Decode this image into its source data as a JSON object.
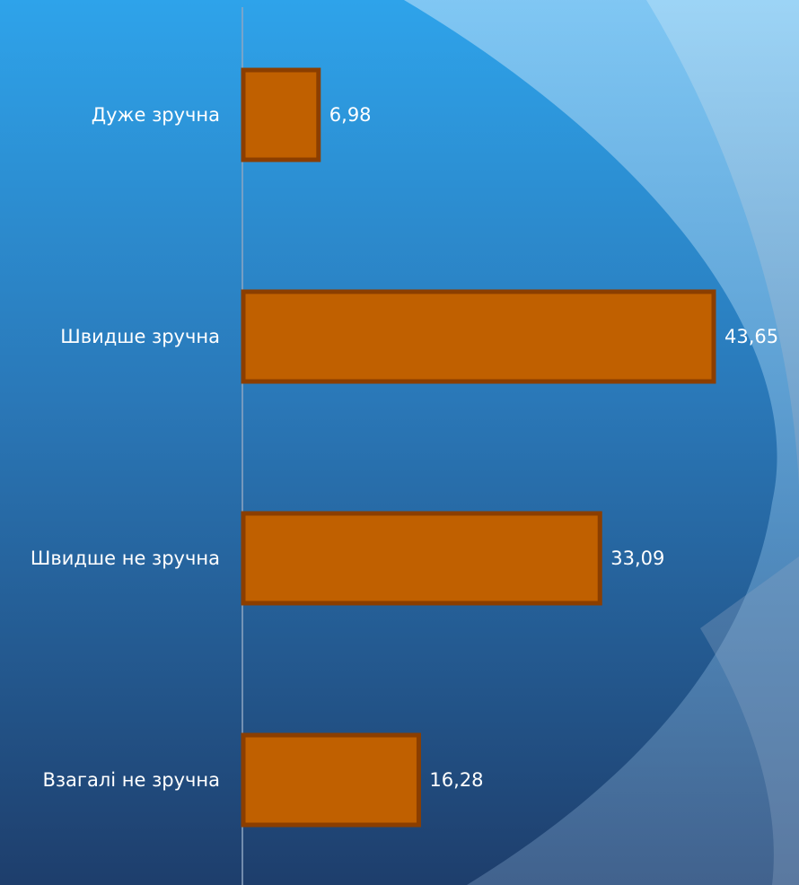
{
  "colors": {
    "bar_fill": "#C06000",
    "bar_stroke": "#8B3E00",
    "axis_line": "#8FA6C2",
    "text": "#FFFFFF",
    "bg_top": "#2F9FE5",
    "bg_bottom": "#1F3F6E",
    "swoosh": "#7DC3F0"
  },
  "chart_data": {
    "type": "bar",
    "orientation": "horizontal",
    "categories": [
      "Дуже зручна",
      "Швидше зручна",
      "Швидше не зручна",
      "Взагалі не зручна"
    ],
    "values": [
      6.98,
      43.65,
      33.09,
      16.28
    ],
    "value_labels": [
      "6,98",
      "43,65",
      "33,09",
      "16,28"
    ],
    "xlim": [
      0,
      43.65
    ],
    "grid": false,
    "legend": "none"
  }
}
